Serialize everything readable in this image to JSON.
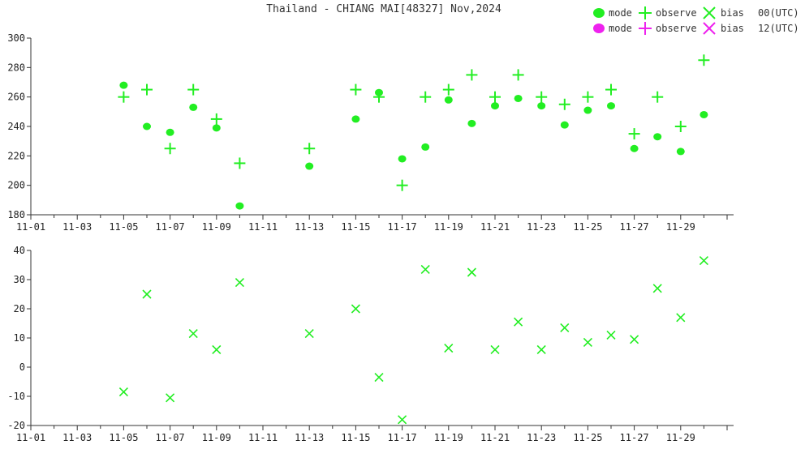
{
  "title": "Thailand - CHIANG MAI[48327] Nov,2024",
  "colors": {
    "utc00": "#22ee22",
    "utc12": "#ee22ee",
    "axis": "#333333"
  },
  "legend": {
    "rows": [
      {
        "mode": "mode",
        "observe": "observe",
        "bias": "bias",
        "time": "00(UTC)",
        "color": "#22ee22"
      },
      {
        "mode": "mode",
        "observe": "observe",
        "bias": "bias",
        "time": "12(UTC)",
        "color": "#ee22ee"
      }
    ]
  },
  "chart_data": [
    {
      "type": "scatter",
      "title": "",
      "xlabel": "",
      "ylabel": "",
      "ylim": [
        180,
        300
      ],
      "yticks": [
        180,
        200,
        220,
        240,
        260,
        280,
        300
      ],
      "xlim": [
        "2024-11-01",
        "2024-11-31"
      ],
      "xtick_labels": [
        "11-01",
        "11-03",
        "11-05",
        "11-07",
        "11-09",
        "11-11",
        "11-13",
        "11-15",
        "11-17",
        "11-19",
        "11-21",
        "11-23",
        "11-25",
        "11-27",
        "11-29"
      ],
      "series": [
        {
          "name": "mode",
          "marker": "dot",
          "color": "#22ee22",
          "points": [
            [
              5,
              268
            ],
            [
              6,
              240
            ],
            [
              7,
              236
            ],
            [
              8,
              253
            ],
            [
              9,
              239
            ],
            [
              10,
              186
            ],
            [
              13,
              213
            ],
            [
              15,
              245
            ],
            [
              16,
              263
            ],
            [
              17,
              218
            ],
            [
              18,
              226
            ],
            [
              19,
              258
            ],
            [
              20,
              242
            ],
            [
              21,
              254
            ],
            [
              22,
              259
            ],
            [
              23,
              254
            ],
            [
              24,
              241
            ],
            [
              25,
              251
            ],
            [
              26,
              254
            ],
            [
              27,
              225
            ],
            [
              28,
              233
            ],
            [
              29,
              223
            ],
            [
              30,
              248
            ]
          ]
        },
        {
          "name": "observe",
          "marker": "plus",
          "color": "#22ee22",
          "points": [
            [
              5,
              260
            ],
            [
              6,
              265
            ],
            [
              7,
              225
            ],
            [
              8,
              265
            ],
            [
              9,
              245
            ],
            [
              10,
              215
            ],
            [
              13,
              225
            ],
            [
              15,
              265
            ],
            [
              16,
              260
            ],
            [
              17,
              200
            ],
            [
              18,
              260
            ],
            [
              19,
              265
            ],
            [
              20,
              275
            ],
            [
              21,
              260
            ],
            [
              22,
              275
            ],
            [
              23,
              260
            ],
            [
              24,
              255
            ],
            [
              25,
              260
            ],
            [
              26,
              265
            ],
            [
              27,
              235
            ],
            [
              28,
              260
            ],
            [
              29,
              240
            ],
            [
              30,
              285
            ]
          ]
        }
      ]
    },
    {
      "type": "scatter",
      "title": "",
      "xlabel": "",
      "ylabel": "",
      "ylim": [
        -20,
        40
      ],
      "yticks": [
        -20,
        -10,
        0,
        10,
        20,
        30,
        40
      ],
      "xlim": [
        "2024-11-01",
        "2024-11-31"
      ],
      "xtick_labels": [
        "11-01",
        "11-03",
        "11-05",
        "11-07",
        "11-09",
        "11-11",
        "11-13",
        "11-15",
        "11-17",
        "11-19",
        "11-21",
        "11-23",
        "11-25",
        "11-27",
        "11-29"
      ],
      "series": [
        {
          "name": "bias",
          "marker": "x",
          "color": "#22ee22",
          "points": [
            [
              5,
              -8.5
            ],
            [
              6,
              25
            ],
            [
              7,
              -10.5
            ],
            [
              8,
              11.5
            ],
            [
              9,
              6
            ],
            [
              10,
              29
            ],
            [
              13,
              11.5
            ],
            [
              15,
              20
            ],
            [
              16,
              -3.5
            ],
            [
              17,
              -18
            ],
            [
              18,
              33.5
            ],
            [
              19,
              6.5
            ],
            [
              20,
              32.5
            ],
            [
              21,
              6
            ],
            [
              22,
              15.5
            ],
            [
              23,
              6
            ],
            [
              24,
              13.5
            ],
            [
              25,
              8.5
            ],
            [
              26,
              11
            ],
            [
              27,
              9.5
            ],
            [
              28,
              27
            ],
            [
              29,
              17
            ],
            [
              30,
              36.5
            ]
          ]
        }
      ]
    }
  ]
}
